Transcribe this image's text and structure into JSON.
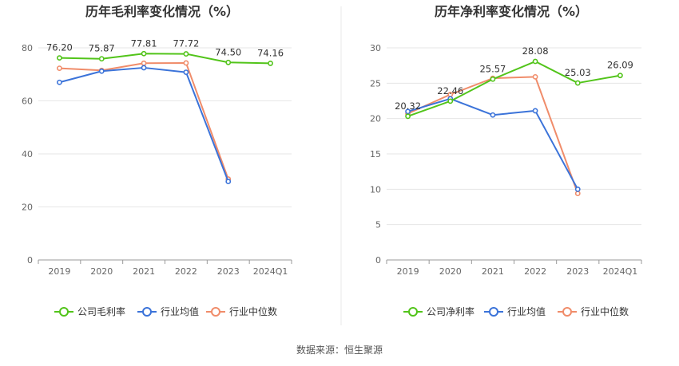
{
  "source": "数据来源：恒生聚源",
  "chart_data": [
    {
      "type": "line",
      "title": "历年毛利率变化情况（%）",
      "categories": [
        "2019",
        "2020",
        "2021",
        "2022",
        "2023",
        "2024Q1"
      ],
      "ylim": [
        0,
        80
      ],
      "yticks": [
        0,
        20,
        40,
        60,
        80
      ],
      "grid": true,
      "legend_position": "bottom",
      "series": [
        {
          "name": "公司毛利率",
          "color": "#52c41a",
          "values": [
            76.2,
            75.87,
            77.81,
            77.72,
            74.5,
            74.16
          ],
          "labels": [
            "76.20",
            "75.87",
            "77.81",
            "77.72",
            "74.50",
            "74.16"
          ]
        },
        {
          "name": "行业均值",
          "color": "#3b73d9",
          "values": [
            67.0,
            71.2,
            72.5,
            70.8,
            29.6,
            null
          ]
        },
        {
          "name": "行业中位数",
          "color": "#f08c6a",
          "values": [
            72.3,
            71.5,
            74.2,
            74.3,
            30.5,
            null
          ]
        }
      ]
    },
    {
      "type": "line",
      "title": "历年净利率变化情况（%）",
      "categories": [
        "2019",
        "2020",
        "2021",
        "2022",
        "2023",
        "2024Q1"
      ],
      "ylim": [
        0,
        30
      ],
      "yticks": [
        0,
        5,
        10,
        15,
        20,
        25,
        30
      ],
      "grid": true,
      "legend_position": "bottom",
      "series": [
        {
          "name": "公司净利率",
          "color": "#52c41a",
          "values": [
            20.32,
            22.46,
            25.57,
            28.08,
            25.03,
            26.09
          ],
          "labels": [
            "20.32",
            "22.46",
            "25.57",
            "28.08",
            "25.03",
            "26.09"
          ]
        },
        {
          "name": "行业均值",
          "color": "#3b73d9",
          "values": [
            21.0,
            22.8,
            20.5,
            21.1,
            10.0,
            null
          ]
        },
        {
          "name": "行业中位数",
          "color": "#f08c6a",
          "values": [
            20.7,
            23.4,
            25.7,
            25.9,
            9.4,
            null
          ]
        }
      ]
    }
  ]
}
